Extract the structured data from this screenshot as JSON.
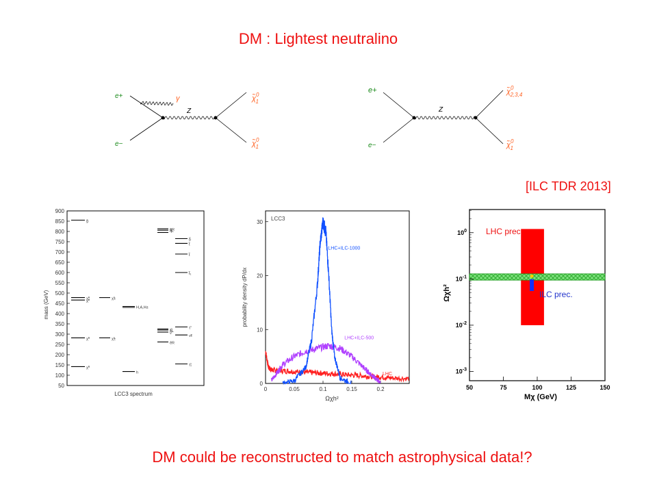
{
  "slide": {
    "title": "DM : Lightest neutralino",
    "reference": "[ILC TDR 2013]",
    "footer": "DM could be reconstructed to match astrophysical data!?"
  },
  "feynman": [
    {
      "in_top": "e+",
      "in_bottom": "e−",
      "photon": "γ",
      "boson": "Z",
      "out_top": "χ̃",
      "out_top_sup": "0",
      "out_top_sub": "1",
      "out_bottom": "χ̃",
      "out_bottom_sup": "0",
      "out_bottom_sub": "1"
    },
    {
      "in_top": "e+",
      "in_bottom": "e−",
      "boson": "Z",
      "out_top": "χ̃",
      "out_top_sup": "0",
      "out_top_sub": "2,3,4",
      "out_bottom": "χ̃",
      "out_bottom_sup": "0",
      "out_bottom_sub": "1"
    }
  ],
  "chart_data": [
    {
      "type": "scatter",
      "title": "LCC3 spectrum",
      "ylabel": "mass (GeV)",
      "ylim": [
        50,
        900
      ],
      "yticks": [
        50,
        100,
        150,
        200,
        250,
        300,
        350,
        400,
        450,
        500,
        550,
        600,
        650,
        700,
        750,
        800,
        850,
        900
      ],
      "levels": [
        {
          "column": 1,
          "mass": 855,
          "label": "g̃"
        },
        {
          "column": 1,
          "mass": 478,
          "label": "χ̃⁰"
        },
        {
          "column": 1,
          "mass": 466,
          "label": "χ̃⁰"
        },
        {
          "column": 1,
          "mass": 282,
          "label": "χ̃⁰"
        },
        {
          "column": 1,
          "mass": 142,
          "label": "χ̃⁰"
        },
        {
          "column": 2,
          "mass": 478,
          "label": "χ̃±"
        },
        {
          "column": 2,
          "mass": 282,
          "label": "χ̃±"
        },
        {
          "column": 3,
          "mass": 435,
          "label": "H,A,H±"
        },
        {
          "column": 3,
          "mass": 430,
          "label": ""
        },
        {
          "column": 3,
          "mass": 118,
          "label": "h"
        },
        {
          "column": 4,
          "mass": 813,
          "label": "q̃R"
        },
        {
          "column": 4,
          "mass": 806,
          "label": "q̃L"
        },
        {
          "column": 4,
          "mass": 795,
          "label": ""
        },
        {
          "column": 4,
          "mass": 325,
          "label": "τ̃"
        },
        {
          "column": 4,
          "mass": 320,
          "label": "ẽL"
        },
        {
          "column": 4,
          "mass": 310,
          "label": "ν̃"
        },
        {
          "column": 4,
          "mass": 262,
          "label": "ẽR"
        },
        {
          "column": 5,
          "mass": 765,
          "label": "b̃"
        },
        {
          "column": 5,
          "mass": 742,
          "label": "t̃"
        },
        {
          "column": 5,
          "mass": 690,
          "label": "t̃"
        },
        {
          "column": 5,
          "mass": 600,
          "label": "t̃₁"
        },
        {
          "column": 5,
          "mass": 335,
          "label": "τ̃"
        },
        {
          "column": 5,
          "mass": 296,
          "label": "ν̃τ"
        },
        {
          "column": 5,
          "mass": 155,
          "label": "τ̃₁"
        }
      ]
    },
    {
      "type": "line",
      "xlabel": "Ωχh²",
      "ylabel": "probability density dP/dx",
      "xlim": [
        0,
        0.25
      ],
      "ylim": [
        0,
        32
      ],
      "xticks": [
        0,
        0.05,
        0.1,
        0.15,
        0.2
      ],
      "xtick_labels": [
        "0",
        "0.05",
        "0.1",
        "0.15",
        "0.2"
      ],
      "yticks": [
        0,
        10,
        20,
        30
      ],
      "panel_label": "LCC3",
      "series": [
        {
          "name": "LHC",
          "color": "#ff2020",
          "x": [
            0,
            0.005,
            0.01,
            0.02,
            0.04,
            0.06,
            0.08,
            0.1,
            0.12,
            0.14,
            0.16,
            0.18,
            0.2,
            0.22,
            0.25
          ],
          "y": [
            6,
            3,
            2.5,
            2.4,
            2.3,
            2.1,
            2.0,
            1.9,
            1.8,
            1.6,
            1.5,
            1.3,
            1.2,
            1.0,
            0.9
          ]
        },
        {
          "name": "LHC+ILC-500",
          "color": "#b040ff",
          "x": [
            0.01,
            0.02,
            0.03,
            0.05,
            0.07,
            0.09,
            0.11,
            0.13,
            0.15,
            0.17,
            0.18,
            0.19,
            0.2
          ],
          "y": [
            0.5,
            2,
            3.5,
            5,
            6,
            6.5,
            7,
            6.5,
            5,
            3,
            2,
            1,
            0.3
          ]
        },
        {
          "name": "LHC+ILC-1000",
          "color": "#1050ff",
          "x": [
            0.03,
            0.05,
            0.07,
            0.08,
            0.09,
            0.095,
            0.1,
            0.105,
            0.11,
            0.115,
            0.12,
            0.13,
            0.15
          ],
          "y": [
            0,
            0.5,
            3,
            8,
            18,
            26,
            30,
            28,
            20,
            10,
            5,
            1,
            0
          ]
        }
      ]
    },
    {
      "type": "scatter",
      "xlabel": "Mχ (GeV)",
      "ylabel": "Ωχh²",
      "xlim": [
        50,
        150
      ],
      "ylim_log": [
        -3.2,
        0.5
      ],
      "xticks": [
        50,
        75,
        100,
        125,
        150
      ],
      "yticks": [
        "10^0",
        "10^-1",
        "10^-2",
        "10^-3"
      ],
      "annotations": [
        "LHC prec.",
        "ILC prec."
      ],
      "regions": [
        {
          "name": "WMAP band",
          "color": "#2bd42b",
          "mass_range": [
            50,
            150
          ],
          "omega_range": [
            0.094,
            0.129
          ]
        },
        {
          "name": "LHC prec.",
          "color": "#ff0000",
          "mass_range": [
            88,
            105
          ],
          "omega_range": [
            0.01,
            1.2
          ]
        },
        {
          "name": "ILC prec.",
          "color": "#1030ff",
          "mass_range": [
            94.5,
            97.5
          ],
          "omega_range": [
            0.055,
            0.098
          ]
        }
      ]
    }
  ]
}
